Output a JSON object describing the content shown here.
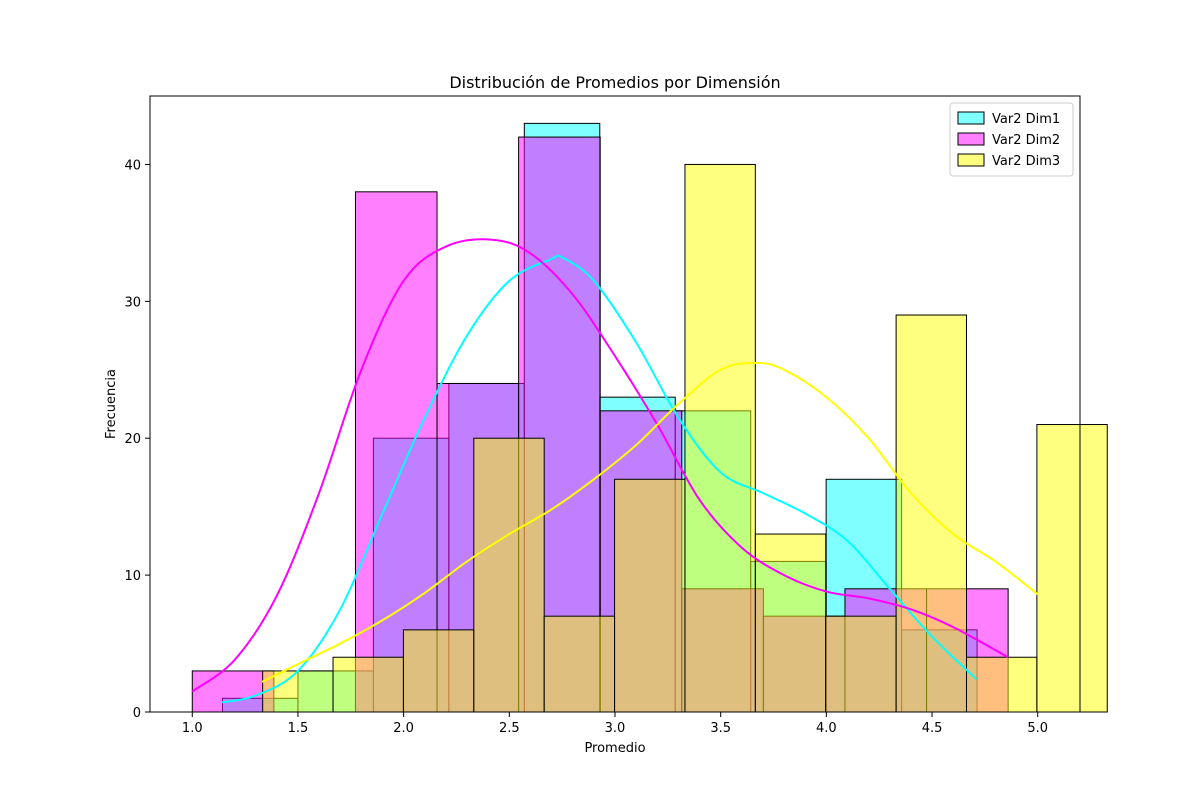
{
  "chart_data": {
    "type": "histogram",
    "title": "Distribución de Promedios por Dimensión",
    "xlabel": "Promedio",
    "ylabel": "Frecuencia",
    "xlim": [
      0.8,
      5.2
    ],
    "ylim": [
      0,
      45
    ],
    "xticks": [
      "1.0",
      "1.5",
      "2.0",
      "2.5",
      "3.0",
      "3.5",
      "4.0",
      "4.5",
      "5.0"
    ],
    "yticks": [
      "0",
      "10",
      "20",
      "30",
      "40"
    ],
    "legend_position": "top-right",
    "grid": false,
    "series": [
      {
        "name": "Var2 Dim1",
        "color": "#00ffff",
        "bin_start": 1.143,
        "bin_width": 0.357,
        "counts": [
          1,
          3,
          20,
          24,
          43,
          23,
          22,
          11,
          17,
          6
        ],
        "kde_x": [
          1.14,
          1.3,
          1.5,
          1.7,
          1.9,
          2.1,
          2.3,
          2.5,
          2.7,
          2.75,
          2.9,
          3.1,
          3.3,
          3.5,
          3.7,
          3.9,
          4.1,
          4.3,
          4.5,
          4.71
        ],
        "kde_y": [
          0.7,
          1.2,
          3.0,
          7.5,
          14.5,
          21.5,
          27.5,
          31.5,
          33.1,
          33.2,
          31.5,
          27.0,
          21.5,
          17.5,
          16.0,
          14.5,
          12.5,
          9.0,
          5.5,
          2.4
        ]
      },
      {
        "name": "Var2 Dim2",
        "color": "#ff00ff",
        "bin_start": 1.0,
        "bin_width": 0.386,
        "counts": [
          3,
          0,
          38,
          24,
          42,
          22,
          9,
          7,
          9,
          9
        ],
        "kde_x": [
          1.0,
          1.2,
          1.4,
          1.6,
          1.8,
          2.0,
          2.2,
          2.42,
          2.6,
          2.8,
          3.0,
          3.2,
          3.4,
          3.6,
          3.8,
          4.0,
          4.2,
          4.4,
          4.6,
          4.86
        ],
        "kde_y": [
          1.5,
          3.8,
          8.5,
          16.0,
          25.0,
          31.5,
          34.0,
          34.5,
          33.5,
          30.5,
          26.0,
          21.0,
          15.5,
          12.0,
          10.0,
          8.8,
          8.3,
          7.5,
          6.2,
          4.0
        ]
      },
      {
        "name": "Var2 Dim3",
        "color": "#ffff00",
        "bin_start": 1.333,
        "bin_width": 0.333,
        "counts": [
          3,
          4,
          6,
          20,
          7,
          17,
          40,
          13,
          7,
          29,
          4,
          21
        ],
        "kde_x": [
          1.33,
          1.5,
          1.7,
          1.9,
          2.1,
          2.3,
          2.5,
          2.7,
          2.9,
          3.1,
          3.3,
          3.5,
          3.67,
          3.8,
          4.0,
          4.2,
          4.4,
          4.6,
          4.8,
          5.0
        ],
        "kde_y": [
          2.2,
          3.5,
          5.0,
          6.7,
          8.7,
          11.0,
          13.0,
          14.8,
          17.0,
          19.5,
          22.5,
          25.0,
          25.5,
          25.0,
          23.0,
          20.0,
          16.0,
          13.0,
          11.0,
          8.6
        ]
      }
    ]
  }
}
